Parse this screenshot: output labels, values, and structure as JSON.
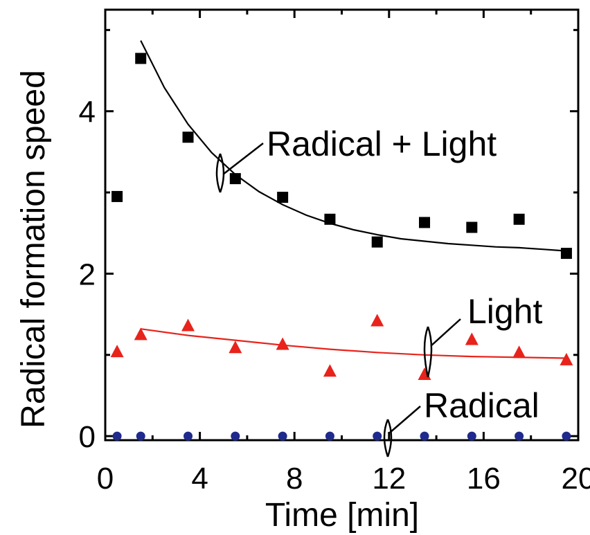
{
  "chart_data": {
    "type": "scatter",
    "xlabel": "Time [min]",
    "ylabel": "Radical formation speed",
    "xlim": [
      0,
      20
    ],
    "ylim": [
      -0.05,
      5.25
    ],
    "xticks": [
      0,
      4,
      8,
      12,
      16,
      20
    ],
    "yticks": [
      0,
      2,
      4
    ],
    "grid": false,
    "series": [
      {
        "name": "Radical + Light",
        "marker": "square",
        "color": "#000000",
        "x": [
          0.5,
          1.5,
          3.5,
          5.5,
          7.5,
          9.5,
          11.5,
          13.5,
          15.5,
          17.5,
          19.5
        ],
        "y": [
          2.95,
          4.65,
          3.68,
          3.17,
          2.94,
          2.67,
          2.39,
          2.63,
          2.57,
          2.67,
          2.25
        ],
        "fit": {
          "x": [
            1.5,
            2.5,
            3.5,
            4.5,
            5.5,
            6.5,
            7.5,
            8.5,
            9.5,
            10.5,
            11.5,
            12.5,
            13.5,
            14.5,
            15.5,
            16.5,
            17.5,
            18.5,
            19.5
          ],
          "y": [
            4.87,
            4.29,
            3.84,
            3.49,
            3.22,
            3.01,
            2.85,
            2.72,
            2.62,
            2.54,
            2.48,
            2.43,
            2.4,
            2.37,
            2.35,
            2.33,
            2.32,
            2.3,
            2.28
          ]
        }
      },
      {
        "name": "Light",
        "marker": "triangle",
        "color": "#e8231b",
        "x": [
          0.5,
          1.5,
          3.5,
          5.5,
          7.5,
          9.5,
          11.5,
          13.5,
          15.5,
          17.5,
          19.5
        ],
        "y": [
          1.04,
          1.25,
          1.36,
          1.09,
          1.13,
          0.8,
          1.42,
          0.76,
          1.19,
          1.03,
          0.94
        ],
        "fit": {
          "x": [
            1.5,
            3.5,
            5.5,
            7.5,
            9.5,
            11.5,
            13.5,
            15.5,
            17.5,
            19.5
          ],
          "y": [
            1.32,
            1.24,
            1.18,
            1.12,
            1.07,
            1.03,
            1.0,
            0.98,
            0.97,
            0.96
          ]
        }
      },
      {
        "name": "Radical",
        "marker": "circle",
        "color": "#1f2a8c",
        "x": [
          0.5,
          1.5,
          3.5,
          5.5,
          7.5,
          9.5,
          11.5,
          13.5,
          15.5,
          17.5,
          19.5
        ],
        "y": [
          0,
          0,
          0,
          0,
          0,
          0,
          0,
          0,
          0,
          0,
          0
        ]
      }
    ],
    "annotations": [
      "Radical + Light",
      "Light",
      "Radical"
    ]
  }
}
